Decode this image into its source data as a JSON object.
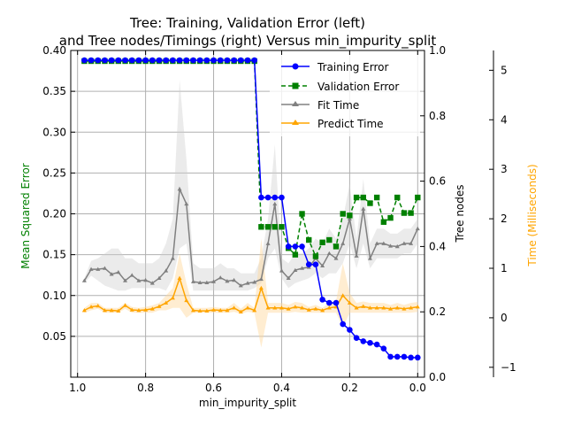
{
  "chart_data": {
    "type": "line",
    "title_line1": "Tree: Training, Validation Error (left)",
    "title_line2": "and Tree nodes/Timings (right) Versus min_impurity_split",
    "xlabel": "min_impurity_split",
    "ylabel_left": "Mean Squared Error",
    "ylabel_right1": "Tree nodes",
    "ylabel_right2": "Time (Milliseconds)",
    "xlim": [
      1.02,
      -0.02
    ],
    "ylim_left": [
      0.0,
      0.4
    ],
    "ylim_right1": [
      0.0,
      1.0
    ],
    "ylim_right2": [
      -1.2,
      5.4
    ],
    "grid": true,
    "legend_position": "top-right",
    "x_ticks": [
      "1.0",
      "0.8",
      "0.6",
      "0.4",
      "0.2",
      "0.0"
    ],
    "y_left_ticks": [
      "0.05",
      "0.10",
      "0.15",
      "0.20",
      "0.25",
      "0.30",
      "0.35",
      "0.40"
    ],
    "y_right1_ticks": [
      "0.0",
      "0.2",
      "0.4",
      "0.6",
      "0.8",
      "1.0"
    ],
    "y_right2_ticks": [
      "−1",
      "0",
      "1",
      "2",
      "3",
      "4",
      "5"
    ],
    "colors": {
      "training": "#0000ff",
      "validation": "#008000",
      "fit": "#808080",
      "predict": "#ffa500",
      "ylabel_left": "#008000",
      "ylabel_right2": "#ffa500",
      "grid": "#b0b0b0"
    },
    "x": [
      0.98,
      0.96,
      0.94,
      0.92,
      0.9,
      0.88,
      0.86,
      0.84,
      0.82,
      0.8,
      0.78,
      0.76,
      0.74,
      0.72,
      0.7,
      0.68,
      0.66,
      0.64,
      0.62,
      0.6,
      0.58,
      0.56,
      0.54,
      0.52,
      0.5,
      0.48,
      0.46,
      0.44,
      0.42,
      0.4,
      0.38,
      0.36,
      0.34,
      0.32,
      0.3,
      0.28,
      0.26,
      0.24,
      0.22,
      0.2,
      0.18,
      0.16,
      0.14,
      0.12,
      0.1,
      0.08,
      0.06,
      0.04,
      0.02,
      0.0
    ],
    "series": [
      {
        "name": "Training Error",
        "axis": "left",
        "marker": "circle",
        "style": "solid",
        "values": [
          0.388,
          0.388,
          0.388,
          0.388,
          0.388,
          0.388,
          0.388,
          0.388,
          0.388,
          0.388,
          0.388,
          0.388,
          0.388,
          0.388,
          0.388,
          0.388,
          0.388,
          0.388,
          0.388,
          0.388,
          0.388,
          0.388,
          0.388,
          0.388,
          0.388,
          0.388,
          0.22,
          0.22,
          0.22,
          0.22,
          0.16,
          0.16,
          0.16,
          0.138,
          0.138,
          0.095,
          0.091,
          0.091,
          0.065,
          0.058,
          0.048,
          0.044,
          0.042,
          0.04,
          0.035,
          0.025,
          0.025,
          0.025,
          0.024,
          0.024
        ]
      },
      {
        "name": "Validation Error",
        "axis": "left",
        "marker": "square",
        "style": "dashed",
        "values": [
          0.387,
          0.387,
          0.387,
          0.387,
          0.387,
          0.387,
          0.387,
          0.387,
          0.387,
          0.387,
          0.387,
          0.387,
          0.387,
          0.387,
          0.387,
          0.387,
          0.387,
          0.387,
          0.387,
          0.387,
          0.387,
          0.387,
          0.387,
          0.387,
          0.387,
          0.387,
          0.184,
          0.184,
          0.184,
          0.184,
          0.158,
          0.15,
          0.2,
          0.168,
          0.148,
          0.165,
          0.168,
          0.16,
          0.2,
          0.198,
          0.22,
          0.22,
          0.213,
          0.22,
          0.19,
          0.195,
          0.22,
          0.201,
          0.201,
          0.22
        ]
      },
      {
        "name": "Fit Time",
        "axis": "right2",
        "marker": "tri",
        "style": "solid",
        "values": [
          0.75,
          0.98,
          0.98,
          1.0,
          0.88,
          0.92,
          0.75,
          0.86,
          0.75,
          0.76,
          0.7,
          0.8,
          0.95,
          1.2,
          2.6,
          2.3,
          0.73,
          0.71,
          0.71,
          0.73,
          0.81,
          0.74,
          0.76,
          0.65,
          0.7,
          0.72,
          0.78,
          1.5,
          2.3,
          0.95,
          0.8,
          0.96,
          1.0,
          1.02,
          1.2,
          1.05,
          1.3,
          1.2,
          1.5,
          2.0,
          1.25,
          2.2,
          1.2,
          1.5,
          1.5,
          1.45,
          1.44,
          1.5,
          1.5,
          1.8
        ]
      },
      {
        "name": "Predict Time",
        "axis": "right2",
        "marker": "tri",
        "style": "solid",
        "values": [
          0.15,
          0.22,
          0.24,
          0.15,
          0.15,
          0.14,
          0.25,
          0.16,
          0.15,
          0.16,
          0.18,
          0.23,
          0.3,
          0.4,
          0.8,
          0.35,
          0.15,
          0.14,
          0.14,
          0.16,
          0.15,
          0.15,
          0.2,
          0.12,
          0.2,
          0.15,
          0.6,
          0.2,
          0.2,
          0.2,
          0.18,
          0.22,
          0.2,
          0.16,
          0.18,
          0.15,
          0.2,
          0.22,
          0.45,
          0.3,
          0.2,
          0.23,
          0.2,
          0.2,
          0.2,
          0.18,
          0.2,
          0.18,
          0.2,
          0.22
        ]
      }
    ],
    "bands": [
      {
        "series": "Fit Time",
        "axis": "right2",
        "low": [
          0.7,
          0.85,
          0.75,
          0.65,
          0.6,
          0.55,
          0.55,
          0.6,
          0.6,
          0.6,
          0.6,
          0.6,
          0.55,
          0.8,
          1.4,
          1.5,
          0.55,
          0.55,
          0.55,
          0.55,
          0.55,
          0.55,
          0.55,
          0.55,
          0.55,
          0.6,
          0.7,
          1.2,
          1.4,
          0.8,
          0.6,
          0.7,
          0.75,
          0.8,
          0.9,
          0.8,
          0.9,
          0.9,
          1.1,
          1.5,
          1.0,
          1.5,
          1.0,
          1.2,
          1.2,
          1.2,
          1.2,
          1.3,
          1.3,
          1.5
        ],
        "high": [
          0.8,
          1.15,
          1.2,
          1.3,
          1.4,
          1.4,
          1.2,
          1.2,
          1.1,
          1.1,
          1.1,
          1.2,
          1.5,
          2.0,
          4.8,
          3.2,
          1.1,
          1.0,
          1.0,
          1.0,
          1.1,
          1.0,
          1.0,
          0.9,
          0.9,
          0.9,
          1.2,
          2.0,
          3.5,
          1.2,
          1.1,
          1.3,
          1.3,
          1.4,
          1.6,
          1.5,
          1.8,
          1.6,
          2.0,
          2.7,
          1.6,
          2.8,
          1.5,
          1.8,
          1.8,
          1.7,
          1.7,
          1.8,
          1.8,
          2.0
        ]
      },
      {
        "series": "Predict Time",
        "axis": "right2",
        "low": [
          0.1,
          0.15,
          0.18,
          0.1,
          0.1,
          0.1,
          0.18,
          0.1,
          0.1,
          0.1,
          0.1,
          0.15,
          0.15,
          0.2,
          0.2,
          0.0,
          0.1,
          0.1,
          0.1,
          0.1,
          0.1,
          0.1,
          0.12,
          0.08,
          0.12,
          0.1,
          -0.6,
          0.1,
          0.1,
          0.1,
          0.1,
          0.12,
          0.1,
          0.1,
          0.1,
          0.1,
          0.1,
          0.1,
          -0.2,
          0.1,
          0.1,
          0.1,
          0.1,
          0.1,
          0.1,
          0.1,
          0.1,
          0.1,
          0.1,
          0.12
        ],
        "high": [
          0.2,
          0.3,
          0.3,
          0.2,
          0.2,
          0.2,
          0.3,
          0.22,
          0.2,
          0.22,
          0.25,
          0.3,
          0.45,
          0.6,
          1.3,
          0.7,
          0.2,
          0.2,
          0.2,
          0.22,
          0.2,
          0.2,
          0.3,
          0.18,
          0.3,
          0.2,
          1.6,
          0.3,
          0.3,
          0.3,
          0.26,
          0.32,
          0.3,
          0.22,
          0.26,
          0.2,
          0.3,
          0.34,
          1.1,
          0.5,
          0.3,
          0.33,
          0.3,
          0.3,
          0.3,
          0.26,
          0.3,
          0.26,
          0.3,
          0.32
        ]
      }
    ]
  }
}
